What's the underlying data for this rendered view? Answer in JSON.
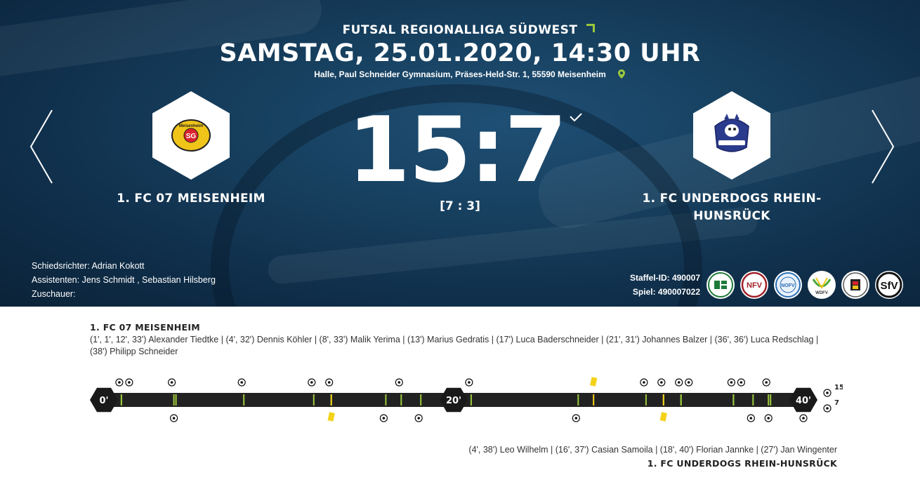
{
  "match": {
    "league": "FUTSAL REGIONALLIGA SÜDWEST",
    "datetime": "SAMSTAG, 25.01.2020, 14:30 UHR",
    "venue": "Halle, Paul Schneider Gymnasium, Präses-Held-Str. 1, 55590 Meisenheim",
    "score": "15:7",
    "halftime": "[7 : 3]"
  },
  "home": {
    "name": "1. FC 07 MEISENHEIM",
    "logo_text": "SG",
    "logo_caption": "Meisenheim",
    "goals_label": "15",
    "scorers": "(1', 1', 12', 33') Alexander Tiedtke | (4', 32') Dennis Köhler | (8', 33') Malik Yerima | (13') Marius Gedratis | (17') Luca Baderschneider | (21', 31') Johannes Balzer | (36', 36') Luca Redschlag | (38') Philipp Schneider"
  },
  "away": {
    "name": "1. FC UNDERDOGS RHEIN-HUNSRÜCK",
    "name_line1": "1. FC UNDERDOGS RHEIN-",
    "name_line2": "HUNSRÜCK",
    "goals_label": "7",
    "scorers": "(4', 38') Leo Wilhelm | (16', 37') Casian Samoila | (18', 40') Florian Jannke | (27') Jan Wingenter"
  },
  "officials": {
    "referee": "Schiedsrichter: Adrian Kokott",
    "assistants": "Assistenten: Jens Schmidt , Sebastian Hilsberg",
    "spectators": "Zuschauer:"
  },
  "ids": {
    "staffel": "Staffel-ID: 490007",
    "spiel": "Spiel: 490007022"
  },
  "associations": [
    {
      "name": "DFB",
      "icon": "dfb-logo"
    },
    {
      "name": "NFV",
      "icon": "nfv-logo"
    },
    {
      "name": "NOFV",
      "icon": "nofv-logo"
    },
    {
      "name": "WDFV",
      "icon": "wdfv-logo"
    },
    {
      "name": "FVRL",
      "icon": "fvrl-logo"
    },
    {
      "name": "SFV",
      "icon": "sfv-logo"
    }
  ],
  "timeline": {
    "labels": [
      "0'",
      "20'",
      "40'"
    ],
    "duration": 40,
    "home_goals": [
      1,
      1,
      4,
      8,
      12,
      13,
      17,
      21,
      31,
      32,
      33,
      33,
      36,
      36,
      38
    ],
    "away_goals": [
      4,
      16,
      18,
      27,
      37,
      38,
      40
    ],
    "home_cards": [
      28
    ],
    "away_cards": [
      13,
      32
    ],
    "colors": {
      "bar": "#222222",
      "tick": "#9cc83c",
      "card": "#f5d21a",
      "hex": "#1a1a1a"
    }
  }
}
